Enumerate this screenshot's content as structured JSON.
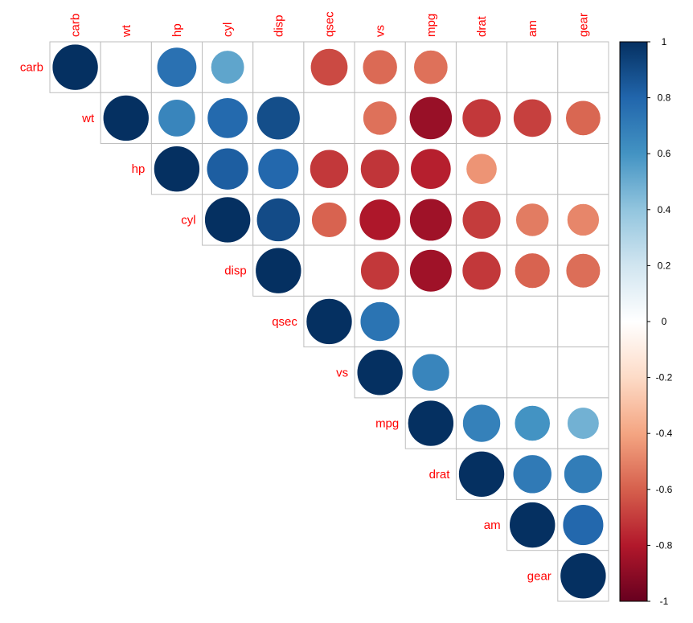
{
  "chart_data": {
    "type": "heatmap",
    "style": "correlation-circles",
    "layout": "upper-triangle",
    "variables": [
      "carb",
      "wt",
      "hp",
      "cyl",
      "disp",
      "qsec",
      "vs",
      "mpg",
      "drat",
      "am",
      "gear"
    ],
    "cells": [
      {
        "row": "carb",
        "col": "carb",
        "value": 1.0
      },
      {
        "row": "carb",
        "col": "hp",
        "value": 0.75
      },
      {
        "row": "carb",
        "col": "cyl",
        "value": 0.53
      },
      {
        "row": "carb",
        "col": "qsec",
        "value": -0.66
      },
      {
        "row": "carb",
        "col": "vs",
        "value": -0.57
      },
      {
        "row": "carb",
        "col": "mpg",
        "value": -0.55
      },
      {
        "row": "wt",
        "col": "wt",
        "value": 1.0
      },
      {
        "row": "wt",
        "col": "hp",
        "value": 0.66
      },
      {
        "row": "wt",
        "col": "cyl",
        "value": 0.78
      },
      {
        "row": "wt",
        "col": "disp",
        "value": 0.89
      },
      {
        "row": "wt",
        "col": "vs",
        "value": -0.55
      },
      {
        "row": "wt",
        "col": "mpg",
        "value": -0.87
      },
      {
        "row": "wt",
        "col": "drat",
        "value": -0.71
      },
      {
        "row": "wt",
        "col": "am",
        "value": -0.69
      },
      {
        "row": "wt",
        "col": "gear",
        "value": -0.58
      },
      {
        "row": "hp",
        "col": "hp",
        "value": 1.0
      },
      {
        "row": "hp",
        "col": "cyl",
        "value": 0.83
      },
      {
        "row": "hp",
        "col": "disp",
        "value": 0.79
      },
      {
        "row": "hp",
        "col": "qsec",
        "value": -0.71
      },
      {
        "row": "hp",
        "col": "vs",
        "value": -0.72
      },
      {
        "row": "hp",
        "col": "mpg",
        "value": -0.78
      },
      {
        "row": "hp",
        "col": "drat",
        "value": -0.45
      },
      {
        "row": "cyl",
        "col": "cyl",
        "value": 1.0
      },
      {
        "row": "cyl",
        "col": "disp",
        "value": 0.9
      },
      {
        "row": "cyl",
        "col": "qsec",
        "value": -0.59
      },
      {
        "row": "cyl",
        "col": "vs",
        "value": -0.81
      },
      {
        "row": "cyl",
        "col": "mpg",
        "value": -0.85
      },
      {
        "row": "cyl",
        "col": "drat",
        "value": -0.7
      },
      {
        "row": "cyl",
        "col": "am",
        "value": -0.52
      },
      {
        "row": "cyl",
        "col": "gear",
        "value": -0.49
      },
      {
        "row": "disp",
        "col": "disp",
        "value": 1.0
      },
      {
        "row": "disp",
        "col": "vs",
        "value": -0.71
      },
      {
        "row": "disp",
        "col": "mpg",
        "value": -0.85
      },
      {
        "row": "disp",
        "col": "drat",
        "value": -0.71
      },
      {
        "row": "disp",
        "col": "am",
        "value": -0.59
      },
      {
        "row": "disp",
        "col": "gear",
        "value": -0.56
      },
      {
        "row": "qsec",
        "col": "qsec",
        "value": 1.0
      },
      {
        "row": "qsec",
        "col": "vs",
        "value": 0.74
      },
      {
        "row": "vs",
        "col": "vs",
        "value": 1.0
      },
      {
        "row": "vs",
        "col": "mpg",
        "value": 0.66
      },
      {
        "row": "mpg",
        "col": "mpg",
        "value": 1.0
      },
      {
        "row": "mpg",
        "col": "drat",
        "value": 0.68
      },
      {
        "row": "mpg",
        "col": "am",
        "value": 0.6
      },
      {
        "row": "mpg",
        "col": "gear",
        "value": 0.48
      },
      {
        "row": "drat",
        "col": "drat",
        "value": 1.0
      },
      {
        "row": "drat",
        "col": "am",
        "value": 0.71
      },
      {
        "row": "drat",
        "col": "gear",
        "value": 0.7
      },
      {
        "row": "am",
        "col": "am",
        "value": 1.0
      },
      {
        "row": "am",
        "col": "gear",
        "value": 0.79
      },
      {
        "row": "gear",
        "col": "gear",
        "value": 1.0
      }
    ],
    "colorbar": {
      "range": [
        -1,
        1
      ],
      "ticks": [
        "1",
        "0.8",
        "0.6",
        "0.4",
        "0.2",
        "0",
        "-0.2",
        "-0.4",
        "-0.6",
        "-0.8",
        "-1"
      ],
      "placement": "right"
    },
    "colors": {
      "negative_end": "#67001f",
      "mid": "#ffffff",
      "positive_end": "#053061",
      "label": "#ff0000",
      "grid": "#bebebe"
    },
    "title": "",
    "xlabel": "",
    "ylabel": "",
    "grid": true,
    "label_color_name": "red"
  }
}
